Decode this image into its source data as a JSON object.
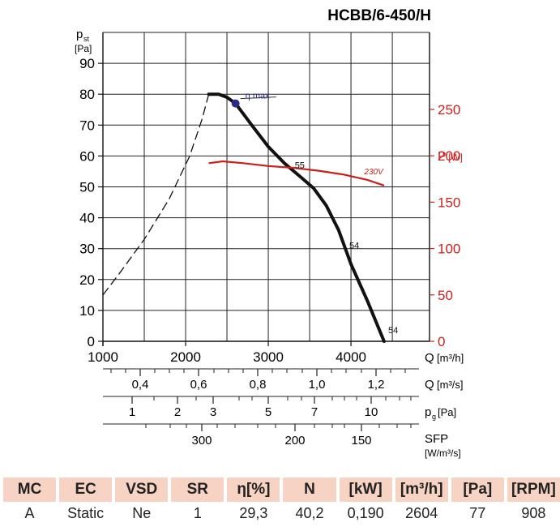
{
  "model": "HCBB/6-450/H",
  "chart_data": {
    "type": "line",
    "x_label": "Q",
    "x_unit": "[m³/h]",
    "xlim": [
      1000,
      4950
    ],
    "x_ticks": [
      "1000",
      "2000",
      "3000",
      "4000"
    ],
    "y_left_label": "p",
    "y_left_sub": "st",
    "y_left_unit": "[Pa]",
    "ylim_left": [
      0,
      100
    ],
    "y_left_ticks": [
      "0",
      "10",
      "20",
      "30",
      "40",
      "50",
      "60",
      "70",
      "80",
      "90"
    ],
    "y_right_label": "P",
    "y_right_unit": "[W]",
    "ylim_right": [
      0,
      333
    ],
    "y_right_ticks": [
      "0",
      "50",
      "100",
      "150",
      "200",
      "250"
    ],
    "grid": true,
    "pressure_curve_dashed": [
      [
        1000,
        15
      ],
      [
        1200,
        22
      ],
      [
        1500,
        33
      ],
      [
        1800,
        46
      ],
      [
        2050,
        60
      ],
      [
        2200,
        72
      ],
      [
        2280,
        80
      ]
    ],
    "pressure_curve": [
      [
        2280,
        80
      ],
      [
        2400,
        80
      ],
      [
        2500,
        79
      ],
      [
        2604,
        77
      ],
      [
        2800,
        70
      ],
      [
        3000,
        63
      ],
      [
        3200,
        57.5
      ],
      [
        3400,
        53
      ],
      [
        3550,
        49.5
      ],
      [
        3700,
        44
      ],
      [
        3850,
        36
      ],
      [
        4000,
        25
      ],
      [
        4200,
        13
      ],
      [
        4400,
        0
      ]
    ],
    "power_curve": [
      [
        2280,
        192
      ],
      [
        2450,
        194
      ],
      [
        2700,
        192
      ],
      [
        3000,
        189
      ],
      [
        3300,
        187
      ],
      [
        3600,
        184
      ],
      [
        3900,
        180
      ],
      [
        4200,
        174
      ],
      [
        4400,
        168
      ]
    ],
    "eta_max_point": {
      "x": 2604,
      "y": 77,
      "label": "η max"
    },
    "curve_labels": [
      {
        "text": "55",
        "x": 3320,
        "y": 56
      },
      {
        "text": "54",
        "x": 3980,
        "y": 30
      },
      {
        "text": "54",
        "x": 4450,
        "y": 2.6
      },
      {
        "text": "230V",
        "x": 4160,
        "y": 180
      }
    ],
    "scale_q_m3s": {
      "label": "Q",
      "unit": "[m³/s]",
      "labels": [
        "0,4",
        "0,6",
        "0,8",
        "1,0",
        "1,2"
      ]
    },
    "scale_pg": {
      "label": "p",
      "sub": "g",
      "unit": "[Pa]",
      "labels": [
        "1",
        "2",
        "3",
        "5",
        "7",
        "10"
      ]
    },
    "scale_sfp": {
      "label": "SFP",
      "unit": "[W/m³/s]",
      "labels": [
        "300",
        "200",
        "150"
      ]
    }
  },
  "table": {
    "headers": [
      "MC",
      "EC",
      "VSD",
      "SR",
      "η[%]",
      "N",
      "[kW]",
      "[m³/h]",
      "[Pa]",
      "[RPM]"
    ],
    "values": [
      "A",
      "Static",
      "Ne",
      "1",
      "29,3",
      "40,2",
      "0,190",
      "2604",
      "77",
      "908"
    ]
  },
  "colors": {
    "accent": "#cc1f1a",
    "eta_point": "#2a2a8a",
    "header_bg": "#f6d3c3"
  }
}
